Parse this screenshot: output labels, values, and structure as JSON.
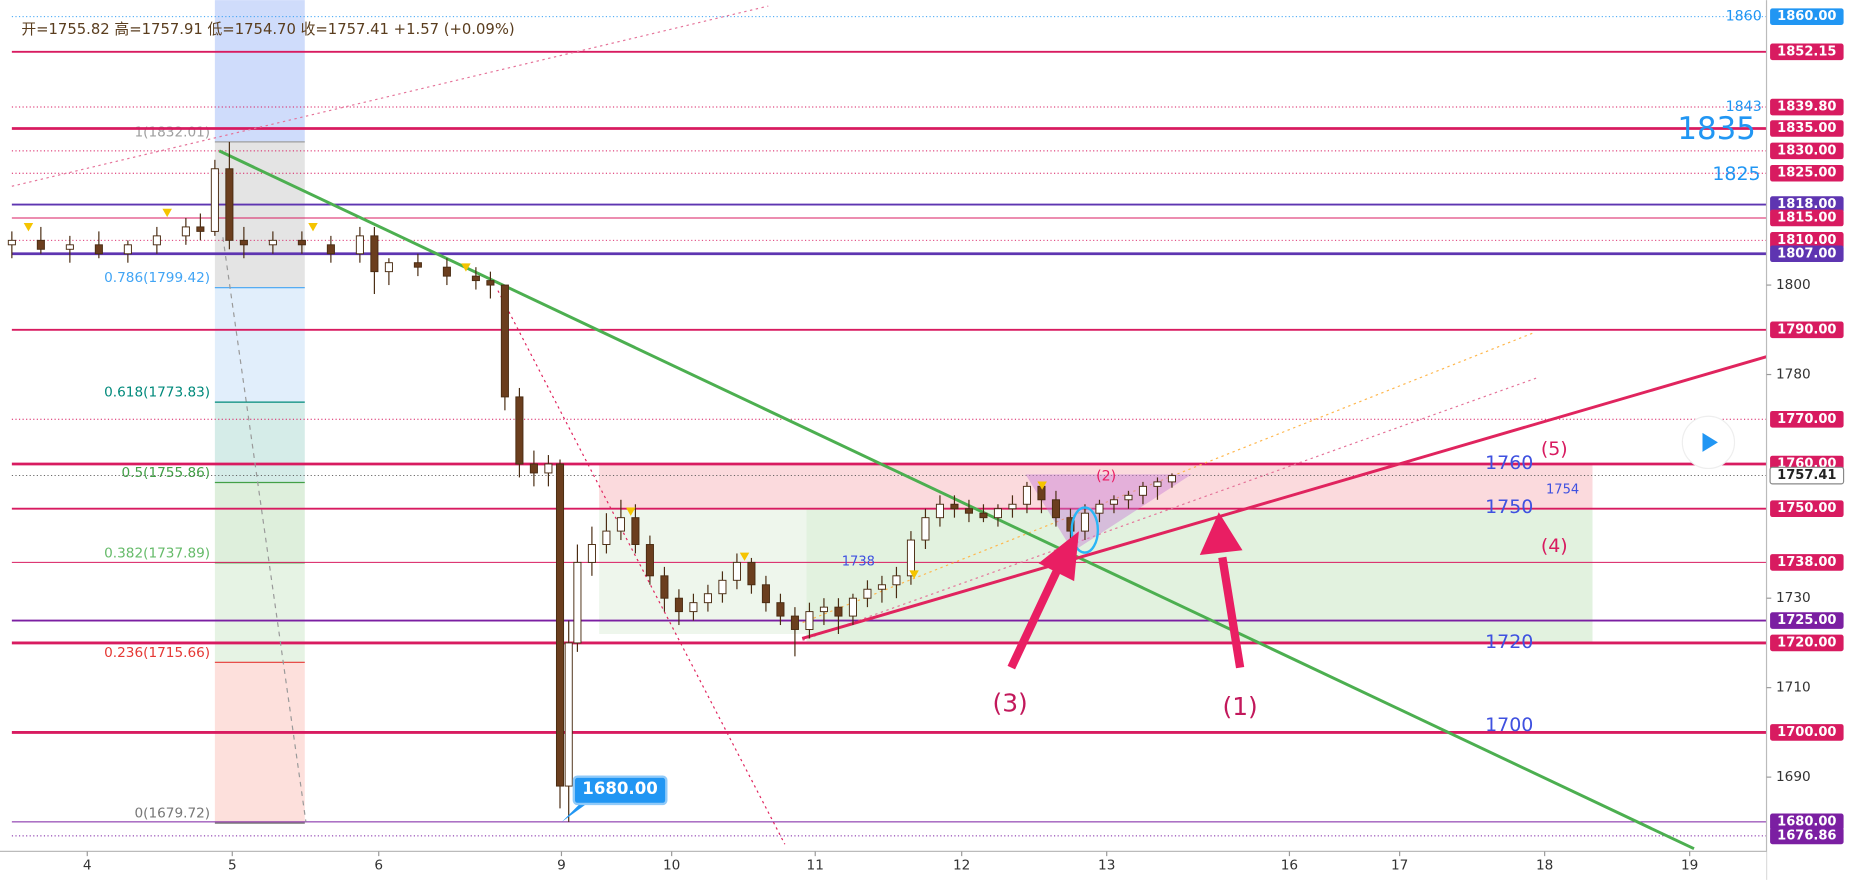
{
  "header": "开=1755.82 高=1757.91 低=1754.70 收=1757.41 +1.57 (+0.09%)",
  "chart_data": {
    "type": "candlestick",
    "xlim": [
      0,
      121
    ],
    "ylim": [
      1673.4,
      1863.7
    ],
    "xticks": [
      {
        "value": 5.2,
        "label": "4"
      },
      {
        "value": 15.2,
        "label": "5"
      },
      {
        "value": 25.3,
        "label": "6"
      },
      {
        "value": 37.9,
        "label": "9"
      },
      {
        "value": 45.5,
        "label": "10"
      },
      {
        "value": 55.4,
        "label": "11"
      },
      {
        "value": 65.5,
        "label": "12"
      },
      {
        "value": 75.5,
        "label": "13"
      },
      {
        "value": 88.1,
        "label": "16"
      },
      {
        "value": 95.7,
        "label": "17"
      },
      {
        "value": 105.7,
        "label": "18"
      },
      {
        "value": 115.7,
        "label": "19"
      }
    ],
    "yticks": [
      1800,
      1780,
      1730,
      1710,
      1690
    ],
    "up_color": "#ffffff",
    "down_color": "#6b3e1e",
    "wick_color": "#4a2c12",
    "candles": {
      "x": [
        0,
        2,
        4,
        6,
        8,
        10,
        12,
        13,
        14,
        15,
        16,
        18,
        20,
        22,
        24,
        25,
        26,
        28,
        30,
        32,
        33,
        34,
        35,
        36,
        37,
        37.8,
        38.4,
        39,
        40,
        41,
        42,
        43,
        44,
        45,
        46,
        47,
        48,
        49,
        50,
        51,
        52,
        53,
        54,
        55,
        56,
        57,
        58,
        59,
        60,
        61,
        62,
        63,
        64,
        65,
        66,
        67,
        68,
        69,
        70,
        71,
        72,
        73,
        74,
        75,
        76,
        77,
        78,
        79,
        80
      ],
      "open": [
        1809,
        1810,
        1808,
        1809,
        1807,
        1809,
        1811,
        1813,
        1812,
        1826,
        1810,
        1809,
        1810,
        1809,
        1807,
        1811,
        1803,
        1805,
        1804,
        1802,
        1801,
        1800,
        1775,
        1760,
        1758,
        1760,
        1688,
        1720,
        1738,
        1742,
        1745,
        1748,
        1742,
        1735,
        1730,
        1727,
        1729,
        1731,
        1734,
        1738,
        1733,
        1729,
        1726,
        1723,
        1727,
        1728,
        1726,
        1730,
        1732,
        1733,
        1735,
        1743,
        1748,
        1751,
        1750,
        1749,
        1748,
        1750,
        1751,
        1755,
        1752,
        1748,
        1745,
        1749,
        1751,
        1752,
        1753,
        1755,
        1756
      ],
      "high": [
        1812,
        1813,
        1811,
        1812,
        1810,
        1813,
        1815,
        1816,
        1828,
        1832,
        1813,
        1812,
        1812,
        1811,
        1813,
        1813,
        1806,
        1807,
        1806,
        1804,
        1803,
        1800,
        1777,
        1763,
        1762,
        1761,
        1725,
        1742,
        1746,
        1749,
        1752,
        1751,
        1744,
        1737,
        1732,
        1731,
        1733,
        1736,
        1740,
        1739,
        1735,
        1731,
        1728,
        1729,
        1730,
        1730,
        1731,
        1734,
        1735,
        1737,
        1745,
        1750,
        1753,
        1753,
        1752,
        1751,
        1751,
        1753,
        1756,
        1756,
        1754,
        1750,
        1751,
        1752,
        1753,
        1754,
        1756,
        1757,
        1757.91
      ],
      "low": [
        1806,
        1807,
        1805,
        1806,
        1805,
        1807,
        1809,
        1810,
        1811,
        1808,
        1806,
        1807,
        1807,
        1805,
        1805,
        1798,
        1800,
        1802,
        1800,
        1799,
        1797,
        1772,
        1757,
        1755,
        1755,
        1683,
        1680,
        1718,
        1735,
        1740,
        1743,
        1740,
        1733,
        1727,
        1724,
        1725,
        1727,
        1729,
        1732,
        1731,
        1727,
        1724,
        1717,
        1721,
        1724,
        1722,
        1724,
        1728,
        1729,
        1730,
        1733,
        1741,
        1746,
        1748,
        1747,
        1747,
        1746,
        1748,
        1749,
        1749,
        1746,
        1742,
        1743,
        1747,
        1749,
        1750,
        1751,
        1752,
        1754.7
      ],
      "close": [
        1810,
        1808,
        1809,
        1807,
        1809,
        1811,
        1813,
        1812,
        1826,
        1810,
        1809,
        1810,
        1809,
        1807,
        1811,
        1803,
        1805,
        1804,
        1802,
        1801,
        1800,
        1775,
        1760,
        1758,
        1760,
        1688,
        1720,
        1738,
        1742,
        1745,
        1748,
        1742,
        1735,
        1730,
        1727,
        1729,
        1731,
        1734,
        1738,
        1733,
        1729,
        1726,
        1723,
        1727,
        1728,
        1726,
        1730,
        1732,
        1733,
        1735,
        1743,
        1748,
        1751,
        1750,
        1749,
        1748,
        1750,
        1751,
        1755,
        1752,
        1748,
        1745,
        1749,
        1751,
        1752,
        1753,
        1755,
        1756,
        1757.41
      ]
    },
    "levels": [
      {
        "value": 1860,
        "label": "1860.00",
        "color": "#2196f3",
        "style": "dotted"
      },
      {
        "value": 1852.15,
        "label": "1852.15",
        "color": "#d81b60",
        "style": "solid"
      },
      {
        "value": 1839.8,
        "label": "1839.80",
        "color": "#d81b60",
        "style": "dotted"
      },
      {
        "value": 1835,
        "label": "1835.00",
        "color": "#d81b60",
        "style": "thick"
      },
      {
        "value": 1830,
        "label": "1830.00",
        "color": "#d81b60",
        "style": "dotted"
      },
      {
        "value": 1825,
        "label": "1825.00",
        "color": "#d81b60",
        "style": "dotted"
      },
      {
        "value": 1818,
        "label": "1818.00",
        "color": "#5e35b1",
        "style": "solid"
      },
      {
        "value": 1815,
        "label": "1815.00",
        "color": "#d81b60",
        "style": "thin"
      },
      {
        "value": 1810,
        "label": "1810.00",
        "color": "#d81b60",
        "style": "dotted"
      },
      {
        "value": 1807,
        "label": "1807.00",
        "color": "#5e35b1",
        "style": "thick"
      },
      {
        "value": 1790,
        "label": "1790.00",
        "color": "#d81b60",
        "style": "solid"
      },
      {
        "value": 1770,
        "label": "1770.00",
        "color": "#d81b60",
        "style": "dotted"
      },
      {
        "value": 1760,
        "label": "1760.00",
        "color": "#d81b60",
        "style": "thick"
      },
      {
        "value": 1757.41,
        "label": "1757.41",
        "color": "#555555",
        "style": "current"
      },
      {
        "value": 1750,
        "label": "1750.00",
        "color": "#d81b60",
        "style": "solid"
      },
      {
        "value": 1738,
        "label": "1738.00",
        "color": "#d81b60",
        "style": "thin"
      },
      {
        "value": 1725,
        "label": "1725.00",
        "color": "#7b1fa2",
        "style": "solid"
      },
      {
        "value": 1720,
        "label": "1720.00",
        "color": "#d81b60",
        "style": "thick"
      },
      {
        "value": 1700,
        "label": "1700.00",
        "color": "#d81b60",
        "style": "thick"
      },
      {
        "value": 1680,
        "label": "1680.00",
        "color": "#7b1fa2",
        "style": "thin"
      },
      {
        "value": 1676.86,
        "label": "1676.86",
        "color": "#7b1fa2",
        "style": "dotted"
      }
    ],
    "fib": {
      "xlim": [
        14,
        20.2
      ],
      "top_color": "#cfdcfb",
      "levels": [
        {
          "value": 1832.01,
          "label": "1(1832.01)",
          "color": "#9e9e9e",
          "band": "#e4e4e4"
        },
        {
          "value": 1799.42,
          "label": "0.786(1799.42)",
          "color": "#42a5f5",
          "band": "#e1eefb"
        },
        {
          "value": 1773.83,
          "label": "0.618(1773.83)",
          "color": "#00897b",
          "band": "#d5ece8"
        },
        {
          "value": 1755.86,
          "label": "0.5(1755.86)",
          "color": "#43a047",
          "band": "#deefdc"
        },
        {
          "value": 1737.89,
          "label": "0.382(1737.89)",
          "color": "#66bb6a",
          "band": "#e6f3e4"
        },
        {
          "value": 1715.66,
          "label": "0.236(1715.66)",
          "color": "#e53935",
          "band": "#fde0dc"
        },
        {
          "value": 1679.72,
          "label": "0(1679.72)",
          "color": "#777777",
          "band": "#ffffff"
        }
      ]
    },
    "zones": [
      {
        "x": [
          40.5,
          109
        ],
        "y": [
          1750,
          1760
        ],
        "color": "#fbdadd"
      },
      {
        "x": [
          40.5,
          54.8
        ],
        "y": [
          1722,
          1750
        ],
        "color": "#eef6ec"
      },
      {
        "x": [
          54.8,
          109
        ],
        "y": [
          1720,
          1750
        ],
        "color": "#e2f2df"
      }
    ],
    "trendlines": [
      {
        "color": "#4caf50",
        "x": [
          14.3,
          116
        ],
        "y": [
          1830,
          1674
        ]
      },
      {
        "color": "#e0245e",
        "x": [
          54.5,
          121
        ],
        "y": [
          1721,
          1784
        ]
      }
    ]
  },
  "annotations": [
    "1860",
    "1843",
    "1835",
    "1825",
    "1760",
    "1750",
    "1720",
    "1700",
    "1754",
    "1738",
    "(5)",
    "(4)",
    "(2)",
    "(3)",
    "(1)",
    "1680.00"
  ]
}
